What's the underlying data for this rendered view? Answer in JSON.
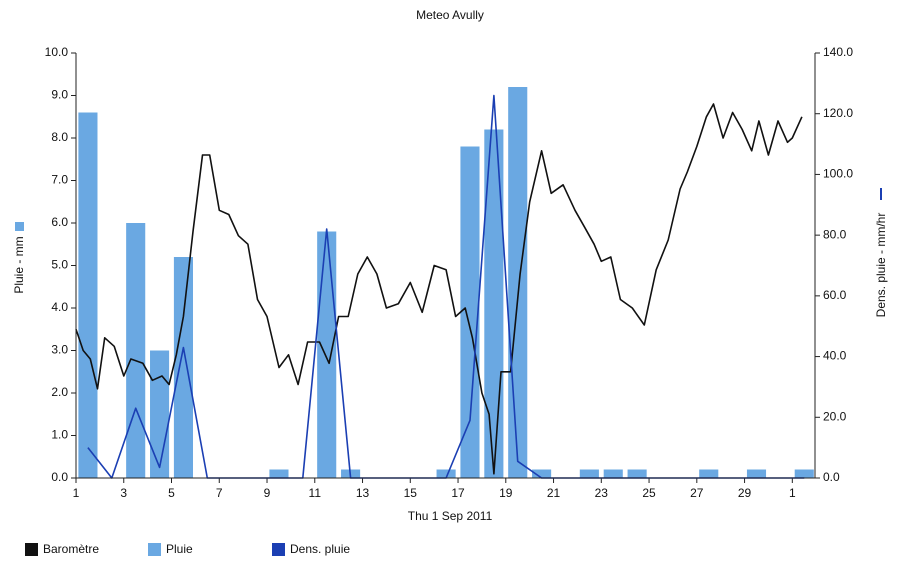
{
  "chart_data": {
    "type": "combo",
    "title": "Meteo Avully",
    "xlabel": "Thu 1 Sep 2011",
    "ylabel": "Pluie - mm",
    "y2label": "Dens. pluie - mm/hr",
    "xlim": [
      1,
      31.95
    ],
    "xticks": [
      1,
      3,
      5,
      7,
      9,
      11,
      13,
      15,
      17,
      19,
      21,
      23,
      25,
      27,
      29,
      {
        "value": 31,
        "label": "1"
      }
    ],
    "ylim": [
      0,
      10
    ],
    "yticks": [
      {
        "value": 0,
        "label": "0.0"
      },
      {
        "value": 1,
        "label": "1.0"
      },
      {
        "value": 2,
        "label": "2.0"
      },
      {
        "value": 3,
        "label": "3.0"
      },
      {
        "value": 4,
        "label": "4.0"
      },
      {
        "value": 5,
        "label": "5.0"
      },
      {
        "value": 6,
        "label": "6.0"
      },
      {
        "value": 7,
        "label": "7.0"
      },
      {
        "value": 8,
        "label": "8.0"
      },
      {
        "value": 9,
        "label": "9.0"
      },
      {
        "value": 10,
        "label": "10.0"
      }
    ],
    "y2lim": [
      0,
      140
    ],
    "y2ticks": [
      {
        "value": 0,
        "label": "0.0"
      },
      {
        "value": 20,
        "label": "20.0"
      },
      {
        "value": 40,
        "label": "40.0"
      },
      {
        "value": 60,
        "label": "60.0"
      },
      {
        "value": 80,
        "label": "80.0"
      },
      {
        "value": 100,
        "label": "100.0"
      },
      {
        "value": 120,
        "label": "120.0"
      },
      {
        "value": 140,
        "label": "140.0"
      }
    ],
    "series": [
      {
        "name": "Baromètre",
        "type": "line",
        "color": "#111111",
        "x": [
          1,
          1.3,
          1.6,
          1.9,
          2.2,
          2.6,
          3.0,
          3.3,
          3.8,
          4.2,
          4.6,
          4.9,
          5.2,
          5.5,
          5.9,
          6.3,
          6.6,
          7.0,
          7.4,
          7.8,
          8.2,
          8.6,
          9.0,
          9.5,
          9.9,
          10.3,
          10.7,
          11.2,
          11.6,
          12.0,
          12.4,
          12.8,
          13.2,
          13.6,
          14.0,
          14.5,
          15.0,
          15.5,
          16.0,
          16.5,
          16.9,
          17.3,
          17.6,
          18.0,
          18.3,
          18.5,
          18.8,
          19.2,
          19.6,
          20.0,
          20.5,
          20.9,
          21.4,
          21.9,
          22.3,
          22.7,
          23.0,
          23.4,
          23.8,
          24.3,
          24.8,
          25.3,
          25.8,
          26.3,
          26.6,
          27.0,
          27.4,
          27.7,
          28.1,
          28.5,
          28.9,
          29.3,
          29.6,
          30.0,
          30.4,
          30.8,
          31.0,
          31.4
        ],
        "values": [
          3.5,
          3.0,
          2.8,
          2.1,
          3.3,
          3.1,
          2.4,
          2.8,
          2.7,
          2.3,
          2.4,
          2.2,
          2.9,
          3.8,
          5.8,
          7.6,
          7.6,
          6.3,
          6.2,
          5.7,
          5.5,
          4.2,
          3.8,
          2.6,
          2.9,
          2.2,
          3.2,
          3.2,
          2.7,
          3.8,
          3.8,
          4.8,
          5.2,
          4.8,
          4.0,
          4.1,
          4.6,
          3.9,
          5.0,
          4.9,
          3.8,
          4.0,
          3.3,
          2.0,
          1.5,
          0.1,
          2.5,
          2.5,
          4.8,
          6.5,
          7.7,
          6.7,
          6.9,
          6.3,
          5.9,
          5.5,
          5.1,
          5.2,
          4.2,
          4.0,
          3.6,
          4.9,
          5.6,
          6.8,
          7.2,
          7.8,
          8.5,
          8.8,
          8.0,
          8.6,
          8.2,
          7.7,
          8.4,
          7.6,
          8.4,
          7.9,
          8.0,
          8.5
        ]
      },
      {
        "name": "Pluie",
        "type": "bar",
        "color": "#6aa8e2",
        "x": [
          1.5,
          3.5,
          4.5,
          5.5,
          9.5,
          11.5,
          12.5,
          16.5,
          17.5,
          18.5,
          19.5,
          20.5,
          22.5,
          23.5,
          24.5,
          27.5,
          29.5,
          31.5
        ],
        "values": [
          8.6,
          6.0,
          3.0,
          5.2,
          0.2,
          5.8,
          0.2,
          0.2,
          7.8,
          8.2,
          9.2,
          0.2,
          0.2,
          0.2,
          0.2,
          0.2,
          0.2,
          0.2
        ]
      },
      {
        "name": "Dens. pluie",
        "type": "line",
        "axis": "y2",
        "color": "#1b3fb3",
        "x": [
          1.5,
          2.5,
          3.5,
          4.5,
          5.5,
          6.5,
          7.5,
          8.5,
          9.5,
          10.5,
          11.5,
          12.5,
          13.5,
          14.5,
          15.5,
          16.5,
          17.5,
          18.5,
          19.5,
          20.5,
          21.5,
          22.5,
          23.5,
          24.5,
          25.5,
          26.5,
          27.5,
          28.5,
          29.5,
          30.5,
          31.5
        ],
        "values": [
          10,
          0,
          23,
          3.5,
          43,
          0,
          0,
          0,
          0,
          0,
          82,
          0,
          0,
          0,
          0,
          0,
          19,
          126,
          5.5,
          0,
          0,
          0,
          0,
          0,
          0,
          0,
          0,
          0,
          0,
          0,
          0
        ]
      }
    ]
  }
}
